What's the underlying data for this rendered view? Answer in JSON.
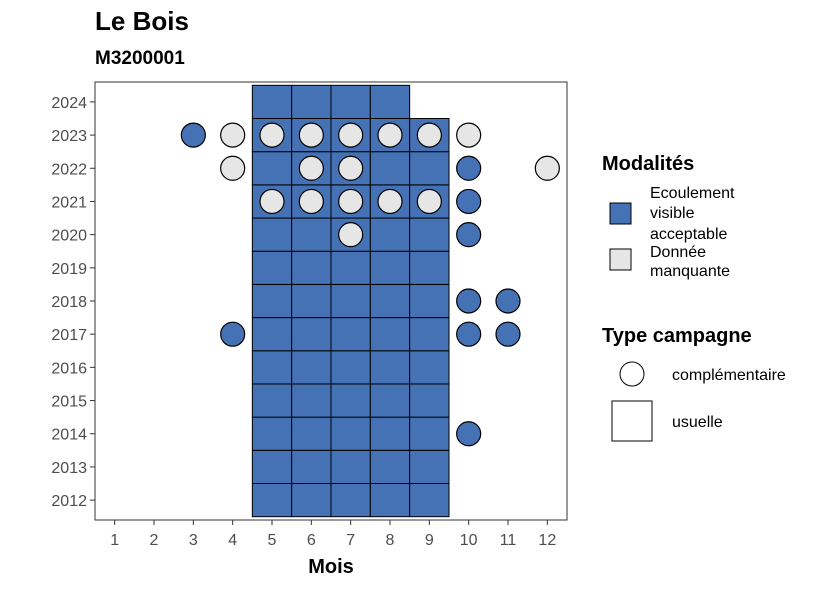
{
  "chart_data": {
    "type": "heatmap",
    "title": "Le Bois",
    "subtitle": "M3200001",
    "xlabel": "Mois",
    "ylabel": "",
    "x_ticks": [
      1,
      2,
      3,
      4,
      5,
      6,
      7,
      8,
      9,
      10,
      11,
      12
    ],
    "y_ticks": [
      2012,
      2013,
      2014,
      2015,
      2016,
      2017,
      2018,
      2019,
      2020,
      2021,
      2022,
      2023,
      2024
    ],
    "xlim": [
      0.5,
      12.5
    ],
    "ylim": [
      2011.4,
      2024.6
    ],
    "grid": false,
    "legend_position": "right",
    "colors": {
      "ecoulement": "#4472b4",
      "manquante": "#e6e6e6",
      "outline": "#000000"
    },
    "legend": {
      "modalites_title": "Modalités",
      "modalites": [
        {
          "key": "ecoulement",
          "lines": [
            "Ecoulement",
            "visible",
            "acceptable"
          ]
        },
        {
          "key": "manquante",
          "lines": [
            "Donnée",
            "manquante"
          ]
        }
      ],
      "type_title": "Type campagne",
      "types": [
        {
          "key": "complementaire",
          "label": "complémentaire"
        },
        {
          "key": "usuelle",
          "label": "usuelle"
        }
      ]
    },
    "usuelle": [
      {
        "year": 2012,
        "months": [
          5,
          6,
          7,
          8,
          9
        ],
        "modalite": "ecoulement"
      },
      {
        "year": 2013,
        "months": [
          5,
          6,
          7,
          8,
          9
        ],
        "modalite": "ecoulement"
      },
      {
        "year": 2014,
        "months": [
          5,
          6,
          7,
          8,
          9
        ],
        "modalite": "ecoulement"
      },
      {
        "year": 2015,
        "months": [
          5,
          6,
          7,
          8,
          9
        ],
        "modalite": "ecoulement"
      },
      {
        "year": 2016,
        "months": [
          5,
          6,
          7,
          8,
          9
        ],
        "modalite": "ecoulement"
      },
      {
        "year": 2017,
        "months": [
          5,
          6,
          7,
          8,
          9
        ],
        "modalite": "ecoulement"
      },
      {
        "year": 2018,
        "months": [
          5,
          6,
          7,
          8,
          9
        ],
        "modalite": "ecoulement"
      },
      {
        "year": 2019,
        "months": [
          5,
          6,
          7,
          8,
          9
        ],
        "modalite": "ecoulement"
      },
      {
        "year": 2020,
        "months": [
          5,
          6,
          7,
          8,
          9
        ],
        "modalite": "ecoulement"
      },
      {
        "year": 2021,
        "months": [
          5,
          6,
          7,
          8,
          9
        ],
        "modalite": "ecoulement"
      },
      {
        "year": 2022,
        "months": [
          5,
          6,
          7,
          8,
          9
        ],
        "modalite": "ecoulement"
      },
      {
        "year": 2023,
        "months": [
          5,
          6,
          7,
          8,
          9
        ],
        "modalite": "ecoulement"
      },
      {
        "year": 2024,
        "months": [
          5,
          6,
          7,
          8
        ],
        "modalite": "ecoulement"
      }
    ],
    "complementaire": [
      {
        "year": 2023,
        "month": 3,
        "modalite": "ecoulement"
      },
      {
        "year": 2023,
        "month": 4,
        "modalite": "manquante"
      },
      {
        "year": 2023,
        "month": 5,
        "modalite": "manquante"
      },
      {
        "year": 2023,
        "month": 6,
        "modalite": "manquante"
      },
      {
        "year": 2023,
        "month": 7,
        "modalite": "manquante"
      },
      {
        "year": 2023,
        "month": 8,
        "modalite": "manquante"
      },
      {
        "year": 2023,
        "month": 9,
        "modalite": "manquante"
      },
      {
        "year": 2023,
        "month": 10,
        "modalite": "manquante"
      },
      {
        "year": 2022,
        "month": 4,
        "modalite": "manquante"
      },
      {
        "year": 2022,
        "month": 6,
        "modalite": "manquante"
      },
      {
        "year": 2022,
        "month": 7,
        "modalite": "manquante"
      },
      {
        "year": 2022,
        "month": 10,
        "modalite": "ecoulement"
      },
      {
        "year": 2022,
        "month": 12,
        "modalite": "manquante"
      },
      {
        "year": 2021,
        "month": 5,
        "modalite": "manquante"
      },
      {
        "year": 2021,
        "month": 6,
        "modalite": "manquante"
      },
      {
        "year": 2021,
        "month": 7,
        "modalite": "manquante"
      },
      {
        "year": 2021,
        "month": 8,
        "modalite": "manquante"
      },
      {
        "year": 2021,
        "month": 9,
        "modalite": "manquante"
      },
      {
        "year": 2021,
        "month": 10,
        "modalite": "ecoulement"
      },
      {
        "year": 2020,
        "month": 7,
        "modalite": "manquante"
      },
      {
        "year": 2020,
        "month": 10,
        "modalite": "ecoulement"
      },
      {
        "year": 2018,
        "month": 10,
        "modalite": "ecoulement"
      },
      {
        "year": 2018,
        "month": 11,
        "modalite": "ecoulement"
      },
      {
        "year": 2017,
        "month": 4,
        "modalite": "ecoulement"
      },
      {
        "year": 2017,
        "month": 10,
        "modalite": "ecoulement"
      },
      {
        "year": 2017,
        "month": 11,
        "modalite": "ecoulement"
      },
      {
        "year": 2014,
        "month": 10,
        "modalite": "ecoulement"
      }
    ]
  }
}
